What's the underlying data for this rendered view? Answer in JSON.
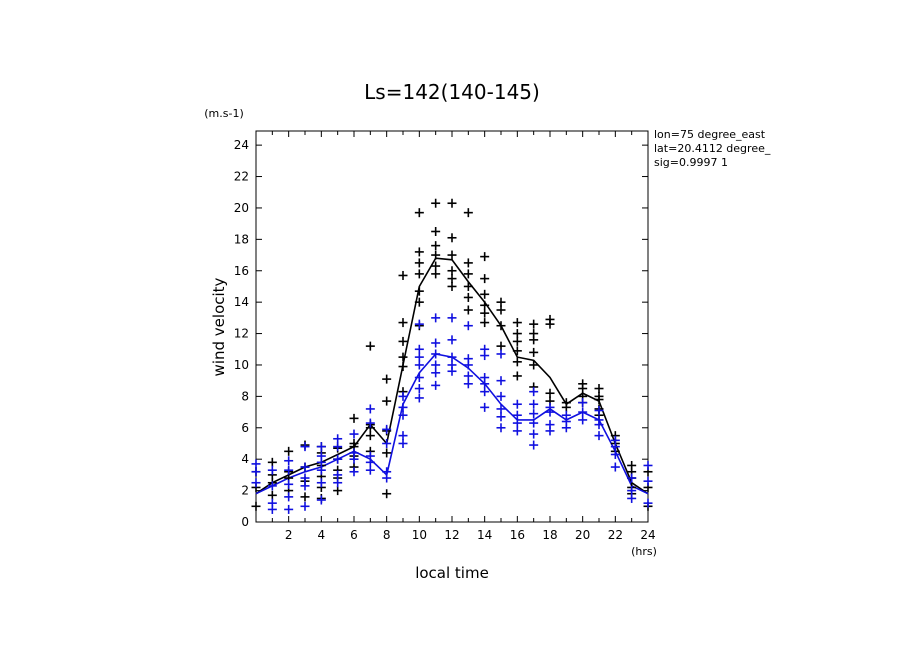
{
  "chart_data": {
    "type": "scatter",
    "title": "Ls=142(140-145)",
    "xlabel": "local time",
    "ylabel": "wind velocity",
    "x_unit": "(hrs)",
    "y_unit": "(m.s-1)",
    "xlim": [
      0,
      24
    ],
    "ylim": [
      0,
      25
    ],
    "x_ticks": [
      2,
      4,
      6,
      8,
      10,
      12,
      14,
      16,
      18,
      20,
      22,
      24
    ],
    "y_ticks": [
      0,
      2,
      4,
      6,
      8,
      10,
      12,
      14,
      16,
      18,
      20,
      22,
      24
    ],
    "annotations": [
      "lon=75 degree_east",
      "lat=20.4112 degree_",
      "sig=0.9997 1"
    ],
    "series": [
      {
        "name": "mean line (black)",
        "color": "#000000",
        "mark": "line",
        "x": [
          0,
          1,
          2,
          3,
          4,
          5,
          6,
          7,
          8,
          9,
          10,
          11,
          12,
          13,
          14,
          15,
          16,
          17,
          18,
          19,
          20,
          21,
          22,
          23,
          24
        ],
        "values": [
          1.8,
          2.5,
          3.0,
          3.5,
          3.8,
          4.3,
          4.8,
          6.2,
          5.0,
          10.0,
          15.0,
          16.8,
          16.7,
          15.3,
          14.0,
          12.5,
          10.5,
          10.3,
          9.2,
          7.5,
          8.2,
          7.7,
          5.0,
          2.5,
          1.8
        ]
      },
      {
        "name": "mean line (blue)",
        "color": "#1010e0",
        "mark": "line",
        "x": [
          0,
          1,
          2,
          3,
          4,
          5,
          6,
          7,
          8,
          9,
          10,
          11,
          12,
          13,
          14,
          15,
          16,
          17,
          18,
          19,
          20,
          21,
          22,
          23,
          24
        ],
        "values": [
          1.8,
          2.3,
          2.8,
          3.2,
          3.5,
          4.0,
          4.5,
          4.0,
          3.0,
          7.5,
          9.5,
          10.7,
          10.5,
          9.8,
          8.8,
          7.5,
          6.5,
          6.5,
          7.2,
          6.5,
          7.0,
          6.5,
          4.5,
          2.3,
          1.8
        ]
      },
      {
        "name": "samples (black)",
        "color": "#000000",
        "mark": "plus",
        "points": [
          [
            0,
            1.0
          ],
          [
            0,
            2.2
          ],
          [
            0,
            3.2
          ],
          [
            1,
            1.7
          ],
          [
            1,
            2.5
          ],
          [
            1,
            3.0
          ],
          [
            1,
            3.8
          ],
          [
            2,
            2.0
          ],
          [
            2,
            2.8
          ],
          [
            2,
            3.2
          ],
          [
            2,
            4.5
          ],
          [
            3,
            1.6
          ],
          [
            3,
            2.6
          ],
          [
            3,
            3.5
          ],
          [
            3,
            4.9
          ],
          [
            4,
            1.5
          ],
          [
            4,
            2.2
          ],
          [
            4,
            2.9
          ],
          [
            4,
            3.6
          ],
          [
            4,
            4.4
          ],
          [
            4,
            4.8
          ],
          [
            5,
            2.0
          ],
          [
            5,
            2.8
          ],
          [
            5,
            3.3
          ],
          [
            5,
            4.0
          ],
          [
            5,
            4.7
          ],
          [
            6,
            3.5
          ],
          [
            6,
            4.2
          ],
          [
            6,
            4.8
          ],
          [
            6,
            5.0
          ],
          [
            6,
            6.6
          ],
          [
            7,
            4.5
          ],
          [
            7,
            5.5
          ],
          [
            7,
            6.0
          ],
          [
            7,
            6.2
          ],
          [
            7,
            11.2
          ],
          [
            8,
            1.8
          ],
          [
            8,
            4.4
          ],
          [
            8,
            5.8
          ],
          [
            8,
            7.7
          ],
          [
            8,
            9.1
          ],
          [
            9,
            8.3
          ],
          [
            9,
            9.9
          ],
          [
            9,
            10.5
          ],
          [
            9,
            11.5
          ],
          [
            9,
            12.7
          ],
          [
            9,
            15.7
          ],
          [
            10,
            12.5
          ],
          [
            10,
            14.0
          ],
          [
            10,
            14.7
          ],
          [
            10,
            15.8
          ],
          [
            10,
            16.5
          ],
          [
            10,
            17.2
          ],
          [
            10,
            19.7
          ],
          [
            11,
            15.8
          ],
          [
            11,
            16.3
          ],
          [
            11,
            17.0
          ],
          [
            11,
            17.6
          ],
          [
            11,
            18.5
          ],
          [
            11,
            20.3
          ],
          [
            12,
            15.0
          ],
          [
            12,
            15.5
          ],
          [
            12,
            16.0
          ],
          [
            12,
            17.0
          ],
          [
            12,
            18.1
          ],
          [
            12,
            20.3
          ],
          [
            13,
            13.5
          ],
          [
            13,
            14.3
          ],
          [
            13,
            15.0
          ],
          [
            13,
            15.8
          ],
          [
            13,
            16.5
          ],
          [
            13,
            19.7
          ],
          [
            14,
            12.7
          ],
          [
            14,
            13.3
          ],
          [
            14,
            13.8
          ],
          [
            14,
            14.5
          ],
          [
            14,
            15.5
          ],
          [
            14,
            16.9
          ],
          [
            15,
            11.2
          ],
          [
            15,
            12.5
          ],
          [
            15,
            13.5
          ],
          [
            15,
            14.0
          ],
          [
            16,
            9.3
          ],
          [
            16,
            10.2
          ],
          [
            16,
            10.9
          ],
          [
            16,
            11.5
          ],
          [
            16,
            12.0
          ],
          [
            16,
            12.7
          ],
          [
            17,
            8.6
          ],
          [
            17,
            10.0
          ],
          [
            17,
            10.8
          ],
          [
            17,
            11.6
          ],
          [
            17,
            12.0
          ],
          [
            17,
            12.6
          ],
          [
            18,
            7.7
          ],
          [
            18,
            8.2
          ],
          [
            18,
            12.6
          ],
          [
            18,
            12.9
          ],
          [
            19,
            7.3
          ],
          [
            19,
            7.6
          ],
          [
            20,
            7.6
          ],
          [
            20,
            8.0
          ],
          [
            20,
            8.5
          ],
          [
            20,
            8.8
          ],
          [
            21,
            6.8
          ],
          [
            21,
            7.2
          ],
          [
            21,
            7.8
          ],
          [
            21,
            8.0
          ],
          [
            21,
            8.5
          ],
          [
            22,
            4.5
          ],
          [
            22,
            5.0
          ],
          [
            22,
            5.5
          ],
          [
            23,
            1.8
          ],
          [
            23,
            2.2
          ],
          [
            23,
            2.8
          ],
          [
            23,
            3.2
          ],
          [
            23,
            3.6
          ],
          [
            24,
            1.0
          ],
          [
            24,
            2.2
          ],
          [
            24,
            3.2
          ]
        ]
      },
      {
        "name": "samples (blue)",
        "color": "#1010e0",
        "mark": "plus",
        "points": [
          [
            0,
            2.5
          ],
          [
            0,
            3.2
          ],
          [
            0,
            3.7
          ],
          [
            1,
            0.8
          ],
          [
            1,
            1.2
          ],
          [
            1,
            2.3
          ],
          [
            1,
            3.3
          ],
          [
            2,
            0.8
          ],
          [
            2,
            1.6
          ],
          [
            2,
            2.4
          ],
          [
            2,
            3.3
          ],
          [
            2,
            3.9
          ],
          [
            3,
            1.0
          ],
          [
            3,
            2.3
          ],
          [
            3,
            2.8
          ],
          [
            3,
            3.5
          ],
          [
            3,
            4.8
          ],
          [
            4,
            1.4
          ],
          [
            4,
            2.5
          ],
          [
            4,
            3.3
          ],
          [
            4,
            3.8
          ],
          [
            4,
            4.2
          ],
          [
            4,
            4.8
          ],
          [
            5,
            2.5
          ],
          [
            5,
            3.0
          ],
          [
            5,
            4.0
          ],
          [
            5,
            4.8
          ],
          [
            5,
            5.3
          ],
          [
            6,
            3.2
          ],
          [
            6,
            4.0
          ],
          [
            6,
            4.4
          ],
          [
            6,
            5.6
          ],
          [
            7,
            3.3
          ],
          [
            7,
            3.8
          ],
          [
            7,
            4.2
          ],
          [
            7,
            6.3
          ],
          [
            7,
            7.2
          ],
          [
            8,
            2.8
          ],
          [
            8,
            3.2
          ],
          [
            8,
            5.0
          ],
          [
            8,
            5.9
          ],
          [
            9,
            5.0
          ],
          [
            9,
            5.5
          ],
          [
            9,
            6.8
          ],
          [
            9,
            7.3
          ],
          [
            9,
            8.0
          ],
          [
            10,
            7.9
          ],
          [
            10,
            8.5
          ],
          [
            10,
            9.2
          ],
          [
            10,
            10.0
          ],
          [
            10,
            10.5
          ],
          [
            10,
            11.0
          ],
          [
            10,
            12.6
          ],
          [
            11,
            8.7
          ],
          [
            11,
            9.5
          ],
          [
            11,
            10.0
          ],
          [
            11,
            10.7
          ],
          [
            11,
            11.4
          ],
          [
            11,
            13.0
          ],
          [
            12,
            9.6
          ],
          [
            12,
            10.0
          ],
          [
            12,
            10.5
          ],
          [
            12,
            11.6
          ],
          [
            12,
            13.0
          ],
          [
            13,
            8.8
          ],
          [
            13,
            9.3
          ],
          [
            13,
            10.0
          ],
          [
            13,
            10.4
          ],
          [
            13,
            12.5
          ],
          [
            14,
            7.3
          ],
          [
            14,
            8.3
          ],
          [
            14,
            8.8
          ],
          [
            14,
            9.2
          ],
          [
            14,
            10.6
          ],
          [
            14,
            11.0
          ],
          [
            15,
            6.0
          ],
          [
            15,
            6.7
          ],
          [
            15,
            7.2
          ],
          [
            15,
            8.0
          ],
          [
            15,
            9.0
          ],
          [
            15,
            10.7
          ],
          [
            16,
            5.8
          ],
          [
            16,
            6.3
          ],
          [
            16,
            6.8
          ],
          [
            16,
            7.5
          ],
          [
            17,
            4.9
          ],
          [
            17,
            5.6
          ],
          [
            17,
            6.3
          ],
          [
            17,
            6.9
          ],
          [
            17,
            7.5
          ],
          [
            17,
            8.3
          ],
          [
            18,
            5.8
          ],
          [
            18,
            6.2
          ],
          [
            18,
            7.0
          ],
          [
            18,
            7.3
          ],
          [
            19,
            6.0
          ],
          [
            19,
            6.4
          ],
          [
            19,
            6.8
          ],
          [
            20,
            6.5
          ],
          [
            20,
            7.0
          ],
          [
            20,
            7.6
          ],
          [
            21,
            5.5
          ],
          [
            21,
            6.2
          ],
          [
            21,
            6.5
          ],
          [
            21,
            7.1
          ],
          [
            22,
            3.5
          ],
          [
            22,
            4.3
          ],
          [
            22,
            4.8
          ],
          [
            22,
            5.2
          ],
          [
            23,
            1.5
          ],
          [
            23,
            2.0
          ],
          [
            23,
            2.8
          ],
          [
            24,
            1.2
          ],
          [
            24,
            2.6
          ],
          [
            24,
            3.6
          ]
        ]
      }
    ]
  }
}
